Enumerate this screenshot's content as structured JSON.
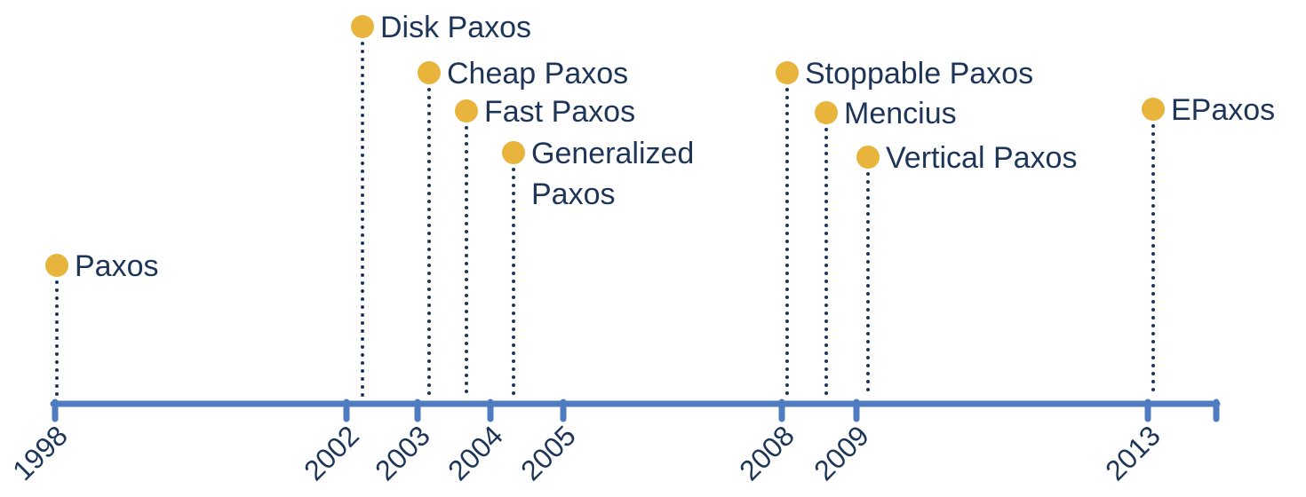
{
  "colors": {
    "axis": "#4f7cc1",
    "dot": "#e8b43c",
    "stem": "#1d3557",
    "text": "#1d3557"
  },
  "years": [
    "1998",
    "2002",
    "2003",
    "2004",
    "2005",
    "2008",
    "2009",
    "2013"
  ],
  "events": [
    {
      "label": [
        "Paxos"
      ]
    },
    {
      "label": [
        "Disk Paxos"
      ]
    },
    {
      "label": [
        "Cheap Paxos"
      ]
    },
    {
      "label": [
        "Fast Paxos"
      ]
    },
    {
      "label": [
        "Generalized",
        "Paxos"
      ]
    },
    {
      "label": [
        "Stoppable Paxos"
      ]
    },
    {
      "label": [
        "Mencius"
      ]
    },
    {
      "label": [
        "Vertical Paxos"
      ]
    },
    {
      "label": [
        "EPaxos"
      ]
    }
  ]
}
